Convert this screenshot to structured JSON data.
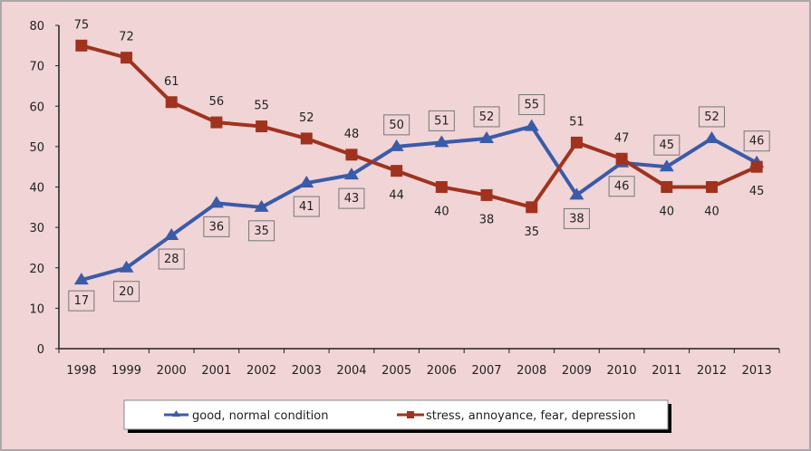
{
  "chart_data": {
    "type": "line",
    "title": "",
    "xlabel": "",
    "ylabel": "",
    "ylim": [
      0,
      80
    ],
    "yticks": [
      0,
      10,
      20,
      30,
      40,
      50,
      60,
      70,
      80
    ],
    "grid": false,
    "legend_position": "bottom",
    "categories": [
      "1998",
      "1999",
      "2000",
      "2001",
      "2002",
      "2003",
      "2004",
      "2005",
      "2006",
      "2007",
      "2008",
      "2009",
      "2010",
      "2011",
      "2012",
      "2013"
    ],
    "series": [
      {
        "name": "good, normal condition",
        "color": "#3a5ba8",
        "marker": "triangle",
        "labels_boxed": true,
        "values": [
          17,
          20,
          28,
          36,
          35,
          41,
          43,
          50,
          51,
          52,
          55,
          38,
          46,
          45,
          52,
          46
        ],
        "labels": [
          "17",
          "20",
          "28",
          "36",
          "35",
          "41",
          "43",
          "50",
          "51",
          "52",
          "55",
          "38",
          "46",
          "45",
          "52",
          "46"
        ]
      },
      {
        "name": "stress, annoyance, fear, depression",
        "color": "#a0321e",
        "marker": "square",
        "labels_boxed": false,
        "values": [
          75,
          72,
          61,
          56,
          55,
          52,
          48,
          44,
          40,
          38,
          35,
          51,
          47,
          40,
          40,
          45
        ],
        "labels": [
          "75",
          "72",
          "61",
          "56",
          "55",
          "52",
          "48",
          "44",
          "40",
          "38",
          "35",
          "51",
          "47",
          "40",
          "40",
          "45"
        ]
      }
    ]
  }
}
